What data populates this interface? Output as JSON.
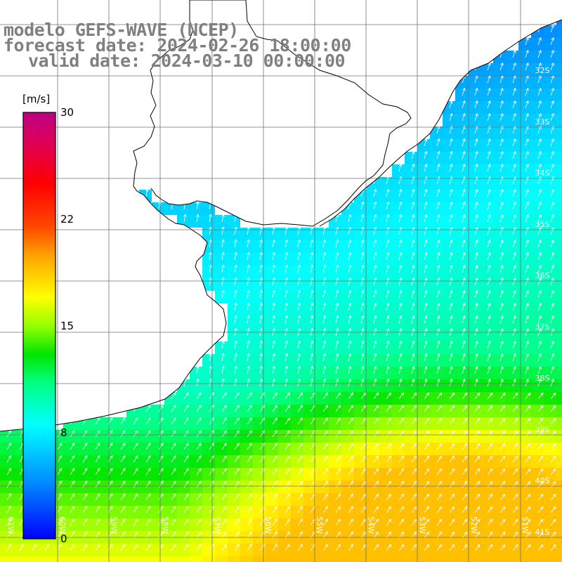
{
  "title": {
    "line1": "modelo GEFS-WAVE (NCEP)",
    "line2": "forecast date: 2024-02-26 18:00:00",
    "line3": "valid date: 2024-03-10 00:00:00"
  },
  "colorbar": {
    "unit": "[m/s]",
    "ticks": [
      "30",
      "22",
      "15",
      "8",
      "0"
    ],
    "tick_values": [
      30,
      22,
      15,
      8,
      0
    ],
    "range": [
      0,
      30
    ],
    "colors": [
      "#0000ff",
      "#00a0ff",
      "#00ffff",
      "#00ff80",
      "#00e000",
      "#80ff00",
      "#ffff00",
      "#ffa000",
      "#ff4000",
      "#ff0000",
      "#e00060",
      "#c00080"
    ]
  },
  "map": {
    "lat_labels": [
      "32S",
      "33S",
      "34S",
      "35S",
      "36S",
      "37S",
      "38S",
      "39S",
      "40S",
      "41S"
    ],
    "lon_labels": [
      "61W",
      "60W",
      "59W",
      "58W",
      "57W",
      "56W",
      "55W",
      "54W",
      "53W",
      "52W",
      "51W"
    ],
    "land_color": "#ffffff",
    "grid_color": "#707070",
    "coast_color": "#000000"
  }
}
